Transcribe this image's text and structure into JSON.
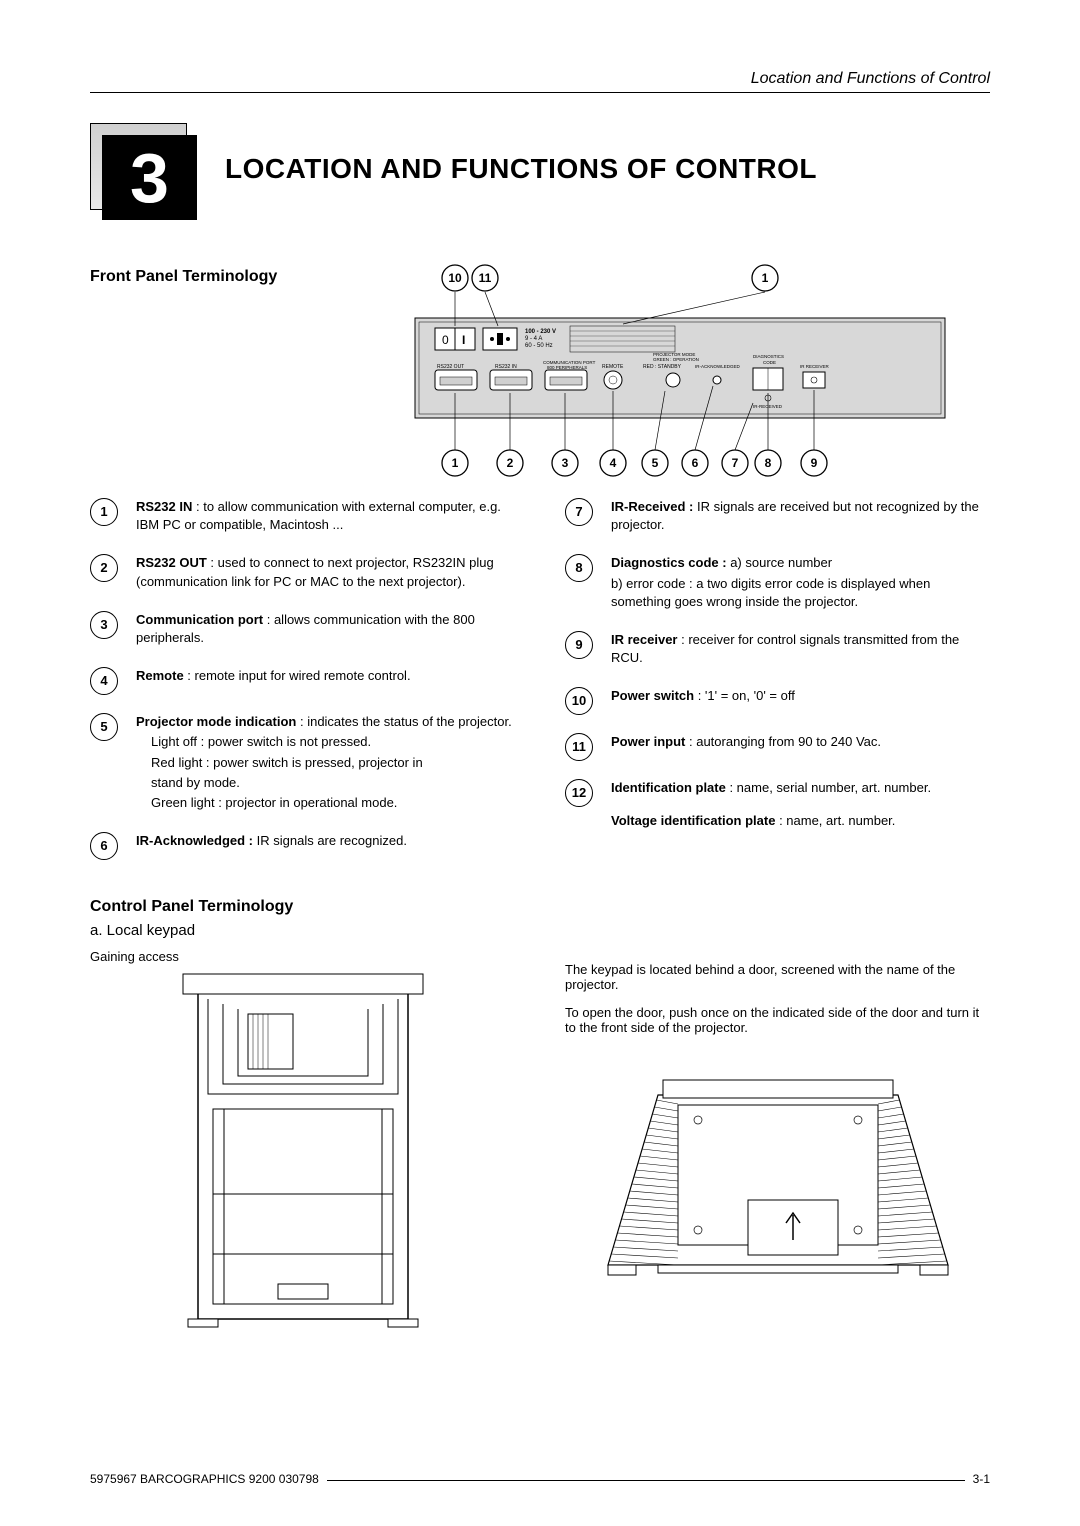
{
  "header": {
    "running_title": "Location and Functions of Control"
  },
  "chapter": {
    "number": "3",
    "title": "LOCATION AND FUNCTIONS OF CONTROL"
  },
  "front_panel": {
    "section_title": "Front Panel Terminology",
    "callout_labels_top": [
      "10",
      "11",
      "1"
    ],
    "callout_labels_bottom": [
      "1",
      "2",
      "3",
      "4",
      "5",
      "6",
      "7",
      "8",
      "9"
    ],
    "panel_parts": {
      "switch_left": "0",
      "switch_right": "I",
      "volt_line1": "100 - 230 V",
      "volt_line2": "9 - 4 A",
      "volt_line3": "60 - 50 Hz",
      "rs232_out": "RS232 OUT",
      "rs232_in": "RS232 IN",
      "comm_port_top": "COMMUNICATION PORT",
      "comm_port_bot": "800 PERIPHERALS",
      "remote": "REMOTE",
      "proj_mode": "PROJECTOR MODE",
      "green_op": "GREEN : OPERATION",
      "red_standby": "RED : STANDBY",
      "ir_ack": "IR-ACKNOWLEDGED",
      "diag_code": "DIAGNOSTICS",
      "code": "CODE",
      "ir_recv_lbl": "IR RECEIVER",
      "ir_recvd": "IR-RECEIVED"
    },
    "items_left": [
      {
        "n": "1",
        "bold": "RS232 IN",
        "text": " : to allow communication with external computer, e.g. IBM PC or compatible, Macintosh ..."
      },
      {
        "n": "2",
        "bold": "RS232 OUT",
        "text": " : used to connect to next projector, RS232IN plug (communication link for PC or MAC to the next projector)."
      },
      {
        "n": "3",
        "bold": "Communication port",
        "text": " : allows communication with the 800 peripherals."
      },
      {
        "n": "4",
        "bold": "Remote",
        "text": " : remote input for wired remote control."
      },
      {
        "n": "5",
        "bold": "Projector mode indication",
        "text": " : indicates the status of the projector.",
        "extra": [
          "Light off : power switch is not pressed.",
          "Red light : power switch is pressed, projector in",
          "     stand by mode.",
          "Green light : projector in operational mode."
        ]
      },
      {
        "n": "6",
        "bold": "IR-Acknowledged :",
        "text": "  IR signals are recognized."
      }
    ],
    "items_right": [
      {
        "n": "7",
        "bold": "IR-Received :",
        "text": " IR signals are received but not recognized by the projector."
      },
      {
        "n": "8",
        "bold": "Diagnostics code :",
        "text": "  a) source number",
        "extra_plain": "b) error code : a two digits error code is displayed when something goes wrong inside the projector."
      },
      {
        "n": "9",
        "bold": "IR receiver",
        "text": " : receiver for control signals transmitted from the RCU."
      },
      {
        "n": "10",
        "bold": "Power switch",
        "text": "  :     '1' = on,  '0' = off"
      },
      {
        "n": "11",
        "bold": "Power input",
        "text": " : autoranging from 90 to 240 Vac."
      },
      {
        "n": "12",
        "bold": "Identification plate",
        "text": " : name, serial number, art. number.",
        "extra_bold": "Voltage identification plate",
        "extra_text": " : name, art. number."
      }
    ]
  },
  "control_panel": {
    "section_title": "Control Panel Terminology",
    "sub_a": "a. Local keypad",
    "gaining": "Gaining access",
    "right_p1": "The keypad is located behind a door, screened with the name of the projector.",
    "right_p2": "To open the door, push once on the indicated side of the door and turn it to the front side of the projector."
  },
  "footer": {
    "left": "5975967 BARCOGRAPHICS 9200 030798",
    "right": "3-1"
  }
}
